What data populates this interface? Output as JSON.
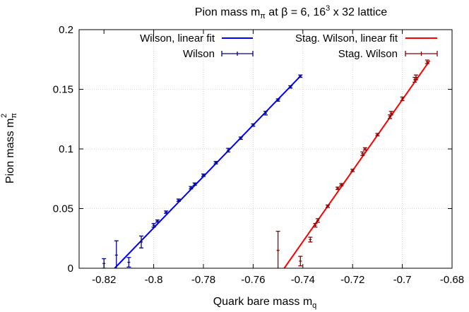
{
  "chart_data": {
    "type": "scatter",
    "title": {
      "main": "Pion mass m",
      "sub": "π",
      "mid": " at β = 6, 16",
      "sup": "3",
      "tail": " x 32 lattice"
    },
    "xlabel": {
      "main": "Quark bare mass m",
      "sub": "q"
    },
    "ylabel": {
      "main": "Pion mass m",
      "sub": "π",
      "sup": "2"
    },
    "xlim": [
      -0.83,
      -0.68
    ],
    "ylim": [
      0,
      0.2
    ],
    "xticks": [
      -0.82,
      -0.8,
      -0.78,
      -0.76,
      -0.74,
      -0.72,
      -0.7,
      -0.68
    ],
    "xtick_labels": [
      "-0.82",
      "-0.8",
      "-0.78",
      "-0.76",
      "-0.74",
      "-0.72",
      "-0.7",
      "-0.68"
    ],
    "yticks": [
      0,
      0.05,
      0.1,
      0.15,
      0.2
    ],
    "ytick_labels": [
      "0",
      "0.05",
      "0.1",
      "0.15",
      "0.2"
    ],
    "grid": true,
    "legend": [
      "top-left",
      "top-right"
    ],
    "series": [
      {
        "name": "Wilson, linear fit",
        "kind": "line",
        "color": "#0000ff",
        "x": [
          -0.8157,
          -0.741
        ],
        "y": [
          0.0,
          0.161
        ]
      },
      {
        "name": "Wilson",
        "kind": "errorbars",
        "color": "#00008b",
        "points": [
          {
            "x": -0.82,
            "y": 0.004,
            "err": 0.004
          },
          {
            "x": -0.815,
            "y": 0.011,
            "err": 0.012
          },
          {
            "x": -0.81,
            "y": 0.005,
            "err": 0.004
          },
          {
            "x": -0.805,
            "y": 0.022,
            "err": 0.005
          },
          {
            "x": -0.8,
            "y": 0.036,
            "err": 0.0015
          },
          {
            "x": -0.7985,
            "y": 0.0395,
            "err": 0.001
          },
          {
            "x": -0.795,
            "y": 0.047,
            "err": 0.001
          },
          {
            "x": -0.79,
            "y": 0.057,
            "err": 0.001
          },
          {
            "x": -0.785,
            "y": 0.0675,
            "err": 0.001
          },
          {
            "x": -0.7835,
            "y": 0.0705,
            "err": 0.001
          },
          {
            "x": -0.78,
            "y": 0.078,
            "err": 0.001
          },
          {
            "x": -0.775,
            "y": 0.0885,
            "err": 0.001
          },
          {
            "x": -0.77,
            "y": 0.099,
            "err": 0.0015
          },
          {
            "x": -0.765,
            "y": 0.109,
            "err": 0.001
          },
          {
            "x": -0.76,
            "y": 0.12,
            "err": 0.001
          },
          {
            "x": -0.755,
            "y": 0.13,
            "err": 0.0015
          },
          {
            "x": -0.75,
            "y": 0.141,
            "err": 0.001
          },
          {
            "x": -0.745,
            "y": 0.152,
            "err": 0.001
          },
          {
            "x": -0.741,
            "y": 0.161,
            "err": 0.001
          }
        ]
      },
      {
        "name": "Stag. Wilson, linear fit",
        "kind": "line",
        "color": "#ff0000",
        "x": [
          -0.7475,
          -0.689
        ],
        "y": [
          0.0,
          0.174
        ]
      },
      {
        "name": "Stag. Wilson",
        "kind": "errorbars",
        "color": "#8b0000",
        "points": [
          {
            "x": -0.75,
            "y": 0.015,
            "err": 0.016
          },
          {
            "x": -0.741,
            "y": 0.006,
            "err": 0.004
          },
          {
            "x": -0.737,
            "y": 0.024,
            "err": 0.002
          },
          {
            "x": -0.735,
            "y": 0.036,
            "err": 0.0015
          },
          {
            "x": -0.734,
            "y": 0.04,
            "err": 0.0015
          },
          {
            "x": -0.73,
            "y": 0.052,
            "err": 0.001
          },
          {
            "x": -0.726,
            "y": 0.067,
            "err": 0.001
          },
          {
            "x": -0.7245,
            "y": 0.07,
            "err": 0.001
          },
          {
            "x": -0.72,
            "y": 0.082,
            "err": 0.001
          },
          {
            "x": -0.716,
            "y": 0.096,
            "err": 0.0015
          },
          {
            "x": -0.715,
            "y": 0.1,
            "err": 0.001
          },
          {
            "x": -0.71,
            "y": 0.112,
            "err": 0.001
          },
          {
            "x": -0.705,
            "y": 0.127,
            "err": 0.0015
          },
          {
            "x": -0.7045,
            "y": 0.13,
            "err": 0.0015
          },
          {
            "x": -0.7,
            "y": 0.142,
            "err": 0.0015
          },
          {
            "x": -0.695,
            "y": 0.158,
            "err": 0.002
          },
          {
            "x": -0.6945,
            "y": 0.16,
            "err": 0.002
          },
          {
            "x": -0.69,
            "y": 0.173,
            "err": 0.0015
          }
        ]
      }
    ]
  }
}
